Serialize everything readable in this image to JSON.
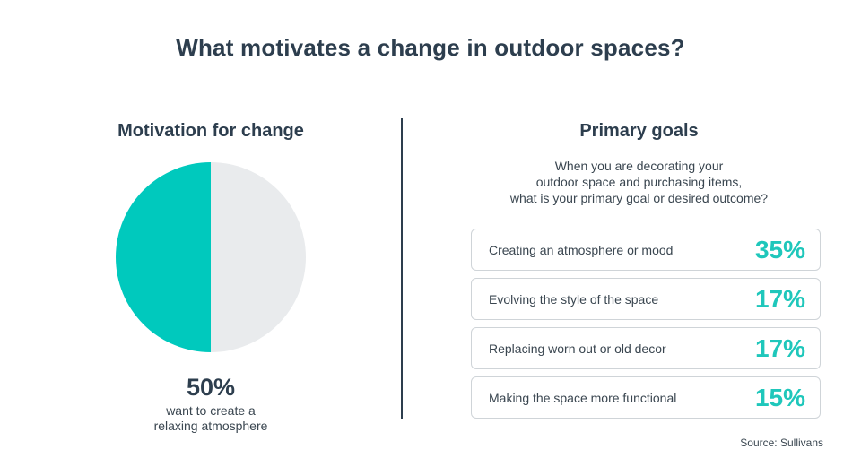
{
  "title": "What motivates a change in outdoor spaces?",
  "left": {
    "heading": "Motivation for change",
    "percent_label": "50%",
    "description_line1": "want to create a",
    "description_line2": "relaxing atmosphere"
  },
  "right": {
    "heading": "Primary goals",
    "question_line1": "When you are decorating your",
    "question_line2": "outdoor space and purchasing items,",
    "question_line3": "what is your primary goal or desired outcome?"
  },
  "source": "Source: Sullivans",
  "colors": {
    "accent": "#1fc7bb",
    "pie_rest": "#e9ebed",
    "text": "#2d3e4e"
  },
  "chart_data": [
    {
      "type": "pie",
      "title": "Motivation for change",
      "slices": [
        {
          "label": "want to create a relaxing atmosphere",
          "value": 50,
          "color": "#00c9bd"
        },
        {
          "label": "",
          "value": 50,
          "color": "#e9ebed"
        }
      ]
    },
    {
      "type": "table",
      "title": "Primary goals",
      "rows": [
        {
          "label": "Creating an atmosphere or mood",
          "value": 35,
          "display": "35%"
        },
        {
          "label": "Evolving the style of the space",
          "value": 17,
          "display": "17%"
        },
        {
          "label": "Replacing worn out or old decor",
          "value": 17,
          "display": "17%"
        },
        {
          "label": "Making the space more functional",
          "value": 15,
          "display": "15%"
        }
      ]
    }
  ]
}
